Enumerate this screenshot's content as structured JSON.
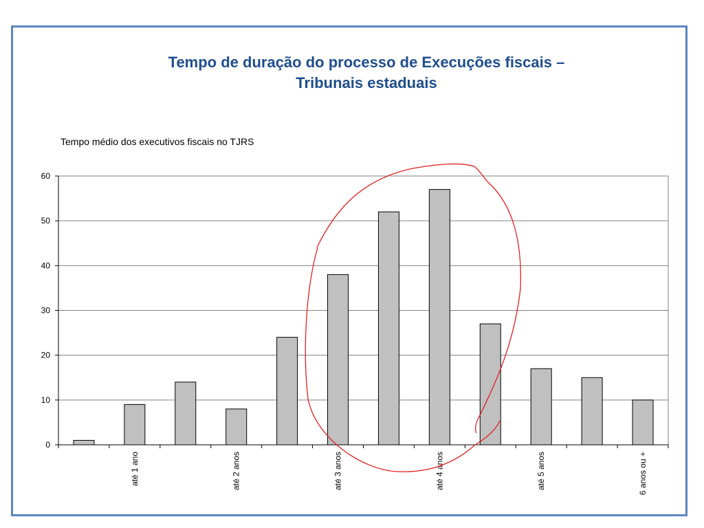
{
  "title_line1": "Tempo de duração do processo de Execuções fiscais –",
  "title_line2": "Tribunais estaduais",
  "chart_data": {
    "type": "bar",
    "title": "Tempo médio dos executivos fiscais no TJRS",
    "xlabel": "",
    "ylabel": "",
    "ylim": [
      0,
      60
    ],
    "yticks": [
      0,
      10,
      20,
      30,
      40,
      50,
      60
    ],
    "grid": true,
    "categories": [
      "",
      "até 1 ano",
      "",
      "até 2 anos",
      "",
      "até 3 anos",
      "",
      "até 4 anos",
      "",
      "até 5 anos",
      "",
      "6 anos ou +"
    ],
    "values": [
      1,
      9,
      14,
      8,
      24,
      38,
      52,
      57,
      27,
      17,
      15,
      10
    ],
    "bar_color": "#c0c0c0",
    "annotation": "red hand-drawn circle around bars at até 3 anos – até 4 anos range"
  },
  "colors": {
    "frame": "#5a86bf",
    "title": "#1f4e8c",
    "bar": "#c0c0c0",
    "grid": "#808080",
    "annotation": "#e02020"
  }
}
